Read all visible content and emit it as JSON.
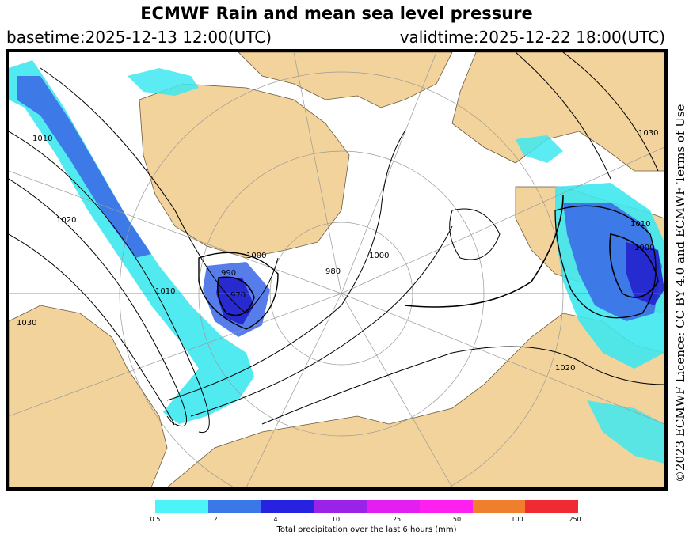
{
  "header": {
    "title": "ECMWF Rain and mean sea level pressure",
    "basetime": "basetime:2025-12-13 12:00(UTC)",
    "validtime": "validtime:2025-12-22 18:00(UTC)"
  },
  "map": {
    "isobar_labels": [
      "1010",
      "1020",
      "1030",
      "1010",
      "1000",
      "990",
      "970",
      "980",
      "1000",
      "1030",
      "1010",
      "1000",
      "1020"
    ],
    "colors": {
      "land": "#f2d39c",
      "sea": "#ffffff",
      "precip_light": "#3ee8f0",
      "precip_mid": "#3a66e6",
      "precip_heavy": "#2222cc",
      "isobar": "#000000"
    }
  },
  "license": "©2023 ECMWF Licence: CC BY 4.0 and ECMWF Terms of Use",
  "legend": {
    "colors": [
      "#4cf3f8",
      "#3a78ea",
      "#2622e0",
      "#9b22e8",
      "#e21ef0",
      "#ff1ff0",
      "#ef7f2c",
      "#f02a32"
    ],
    "ticks": [
      "0.5",
      "2",
      "4",
      "10",
      "25",
      "50",
      "100",
      "250"
    ],
    "label": "Total precipitation over the last 6 hours (mm)"
  }
}
